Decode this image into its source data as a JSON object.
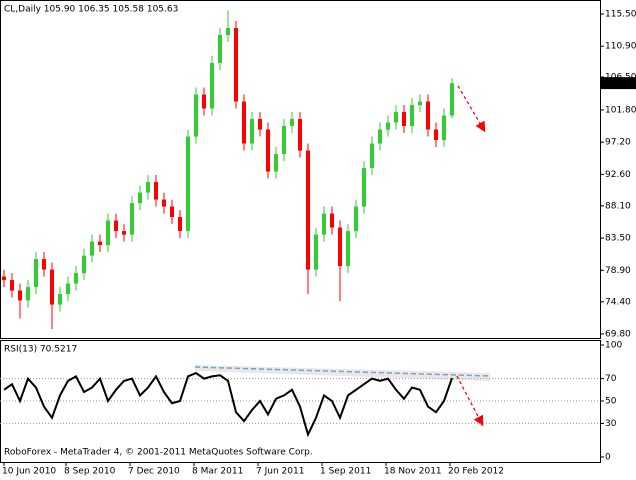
{
  "chart_data": [
    {
      "type": "candlestick",
      "title": "CL,Daily  105.90 106.35 105.58 105.63",
      "up_color": "#33cc33",
      "down_color": "#ff0000",
      "open": [
        78.0,
        77.5,
        76.0,
        74.6,
        76.5,
        80.5,
        79.0,
        74.0,
        75.5,
        77.0,
        78.5,
        81.0,
        83.0,
        82.5,
        86.0,
        84.5,
        84.0,
        88.5,
        90.0,
        91.5,
        89.0,
        88.0,
        86.5,
        84.5,
        98.0,
        104.0,
        102.0,
        108.5,
        112.5,
        113.5,
        103.0,
        97.0,
        100.5,
        99.0,
        93.0,
        95.5,
        99.5,
        100.5,
        96.0,
        79.0,
        84.0,
        87.0,
        85.0,
        79.5,
        84.5,
        88.0,
        93.5,
        97.0,
        99.0,
        100.0,
        101.5,
        99.5,
        102.5,
        103.0,
        99.0,
        97.5,
        101.0
      ],
      "high": [
        79.0,
        78.5,
        77.0,
        77.5,
        81.5,
        81.5,
        80.0,
        76.5,
        78.0,
        79.5,
        82.0,
        84.0,
        84.0,
        87.0,
        87.0,
        85.5,
        89.5,
        91.0,
        92.5,
        92.5,
        90.0,
        89.0,
        87.5,
        99.0,
        105.0,
        105.0,
        109.5,
        113.5,
        116.0,
        114.5,
        104.0,
        101.5,
        101.5,
        100.0,
        96.5,
        100.5,
        101.5,
        101.5,
        97.0,
        85.0,
        88.0,
        88.0,
        86.0,
        85.5,
        89.0,
        94.5,
        98.0,
        100.0,
        101.0,
        102.5,
        102.5,
        103.5,
        104.0,
        104.0,
        100.0,
        102.0,
        106.35
      ],
      "low": [
        76.5,
        75.0,
        72.0,
        73.6,
        75.5,
        78.0,
        70.5,
        73.0,
        74.5,
        76.0,
        77.5,
        80.0,
        81.5,
        81.5,
        83.5,
        83.0,
        83.0,
        87.5,
        89.0,
        88.0,
        87.0,
        85.5,
        83.5,
        83.5,
        97.0,
        101.0,
        101.0,
        107.5,
        111.5,
        102.0,
        96.0,
        96.0,
        98.0,
        92.0,
        92.0,
        94.5,
        98.5,
        95.0,
        75.5,
        78.0,
        83.0,
        84.0,
        74.5,
        78.5,
        83.5,
        87.0,
        92.5,
        96.0,
        98.0,
        99.0,
        98.5,
        98.5,
        101.5,
        98.0,
        96.5,
        96.5,
        100.6
      ],
      "close": [
        77.5,
        76.0,
        74.6,
        76.5,
        80.5,
        79.0,
        74.0,
        75.5,
        77.0,
        78.5,
        81.0,
        83.0,
        82.5,
        86.0,
        84.5,
        84.0,
        88.5,
        90.0,
        91.5,
        89.0,
        88.0,
        86.5,
        84.5,
        98.0,
        104.0,
        102.0,
        108.5,
        112.5,
        113.5,
        103.0,
        97.0,
        100.5,
        99.0,
        93.0,
        95.5,
        99.5,
        100.5,
        96.0,
        79.0,
        84.0,
        87.0,
        85.0,
        79.5,
        84.5,
        88.0,
        93.5,
        97.0,
        99.0,
        100.0,
        101.5,
        99.5,
        102.5,
        103.0,
        99.0,
        97.5,
        101.0,
        105.63
      ],
      "xlim": [
        -0.5,
        74.5
      ],
      "ylim": [
        69.23,
        117.5
      ],
      "yticks": [
        {
          "value": 115.5,
          "label": "115.50"
        },
        {
          "value": 110.9,
          "label": "110.90"
        },
        {
          "value": 106.5,
          "label": "106.50"
        },
        {
          "value": 101.8,
          "label": "101.80"
        },
        {
          "value": 97.2,
          "label": "97.20"
        },
        {
          "value": 92.6,
          "label": "92.60"
        },
        {
          "value": 88.1,
          "label": "88.10"
        },
        {
          "value": 83.5,
          "label": "83.50"
        },
        {
          "value": 78.9,
          "label": "78.90"
        },
        {
          "value": 74.4,
          "label": "74.40"
        },
        {
          "value": 69.8,
          "label": "69.80"
        }
      ]
    },
    {
      "type": "line",
      "title": "RSI(13) 70.5217",
      "color": "#000000",
      "values": [
        60,
        65,
        50,
        70,
        62,
        45,
        35,
        55,
        68,
        72,
        58,
        62,
        70,
        50,
        60,
        68,
        70,
        55,
        62,
        72,
        58,
        48,
        50,
        72,
        75,
        70,
        72,
        73,
        68,
        40,
        32,
        42,
        50,
        38,
        52,
        55,
        60,
        45,
        20,
        35,
        55,
        50,
        35,
        55,
        60,
        65,
        70,
        68,
        70,
        60,
        52,
        62,
        60,
        45,
        40,
        50,
        70.5217
      ],
      "xlim": [
        -0.5,
        74.5
      ],
      "ylim": [
        -4.5,
        104.5
      ],
      "yticks": [
        100,
        70,
        50,
        30,
        0
      ],
      "levels": [
        70,
        50,
        30
      ],
      "xticks": [
        {
          "value": 0,
          "label": "10 Jun 2010"
        },
        {
          "value": 7.75,
          "label": "8 Sep 2010"
        },
        {
          "value": 15.75,
          "label": "7 Dec 2010"
        },
        {
          "value": 23.75,
          "label": "8 Mar 2011"
        },
        {
          "value": 31.75,
          "label": "7 Jun 2011"
        },
        {
          "value": 39.75,
          "label": "1 Sep 2011"
        },
        {
          "value": 47.75,
          "label": "18 Nov 2011"
        },
        {
          "value": 55.75,
          "label": "20 Feb 2012"
        }
      ],
      "annotation": "RoboForex - MetaTrader 4, © 2001-2011 MetaQuotes Software Corp."
    }
  ]
}
